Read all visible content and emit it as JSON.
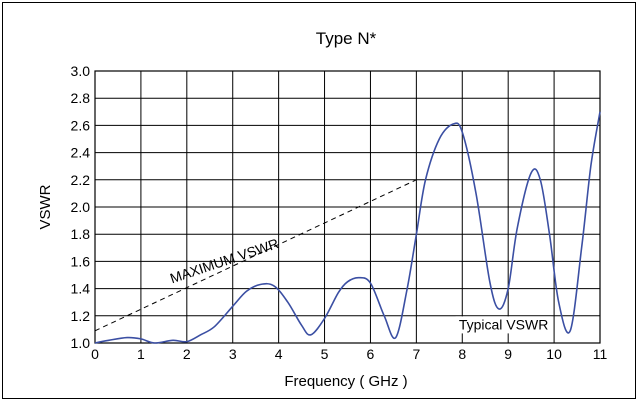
{
  "chart_data": {
    "type": "line",
    "title": "Type N*",
    "xlabel": "Frequency ( GHz )",
    "ylabel": "VSWR",
    "xlim": [
      0,
      11
    ],
    "ylim": [
      1.0,
      3.0
    ],
    "x_ticks": [
      "0",
      "1",
      "2",
      "3",
      "4",
      "5",
      "6",
      "7",
      "8",
      "9",
      "10",
      "11"
    ],
    "y_ticks": [
      "1.0",
      "1.2",
      "1.4",
      "1.6",
      "1.8",
      "2.0",
      "2.2",
      "2.4",
      "2.6",
      "2.8",
      "3.0"
    ],
    "grid": true,
    "series": [
      {
        "name": "Typical VSWR",
        "color": "#3b4fa3",
        "style": "solid",
        "x": [
          0,
          0.3,
          0.7,
          1.0,
          1.3,
          1.7,
          2.0,
          2.3,
          2.6,
          3.0,
          3.3,
          3.6,
          3.9,
          4.2,
          4.5,
          4.7,
          5.0,
          5.3,
          5.5,
          5.75,
          6.0,
          6.3,
          6.55,
          6.8,
          7.0,
          7.2,
          7.5,
          7.8,
          8.0,
          8.3,
          8.6,
          8.8,
          9.0,
          9.2,
          9.5,
          9.7,
          9.9,
          10.1,
          10.35,
          10.6,
          10.8,
          11.0
        ],
        "y": [
          1.0,
          1.02,
          1.04,
          1.03,
          1.0,
          1.02,
          1.01,
          1.06,
          1.12,
          1.27,
          1.38,
          1.43,
          1.42,
          1.3,
          1.13,
          1.06,
          1.18,
          1.37,
          1.45,
          1.48,
          1.44,
          1.2,
          1.04,
          1.4,
          1.8,
          2.2,
          2.5,
          2.61,
          2.55,
          2.1,
          1.45,
          1.25,
          1.4,
          1.85,
          2.25,
          2.2,
          1.8,
          1.3,
          1.09,
          1.7,
          2.3,
          2.7
        ]
      },
      {
        "name": "MAXIMUM VSWR",
        "color": "#000000",
        "style": "dashed",
        "x": [
          0,
          7
        ],
        "y": [
          1.09,
          2.2
        ]
      }
    ],
    "annotations": [
      {
        "text": "MAXIMUM VSWR",
        "x": 2.85,
        "y": 1.57,
        "angle": -18.5
      },
      {
        "text": "Typical VSWR",
        "x": 8.9,
        "y": 1.1
      }
    ]
  }
}
